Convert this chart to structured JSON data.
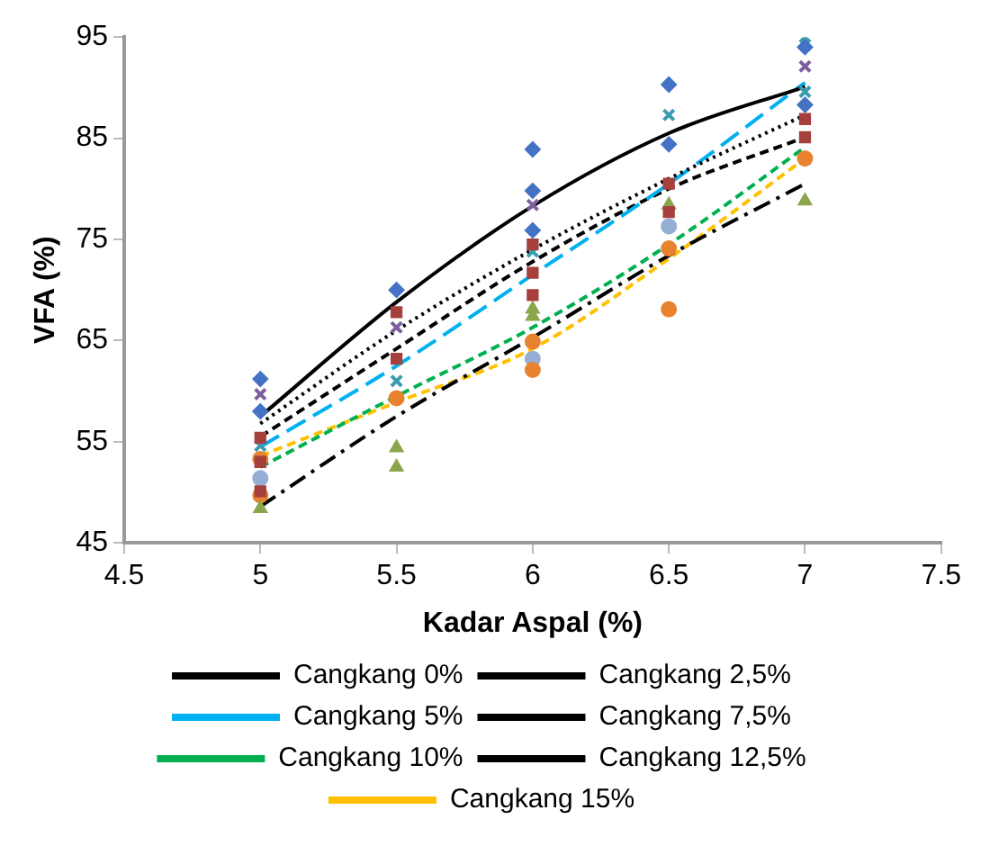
{
  "chart_data": {
    "type": "scatter",
    "xlabel": "Kadar Aspal (%)",
    "ylabel": "VFA (%)",
    "xlim": [
      4.5,
      7.5
    ],
    "xticks": [
      4.5,
      5,
      5.5,
      6,
      6.5,
      7,
      7.5
    ],
    "ylim": [
      45,
      95
    ],
    "yticks": [
      45,
      55,
      65,
      75,
      85,
      95
    ],
    "grid": false,
    "legend": "bottom",
    "series": [
      {
        "marker": "diamond",
        "color": "#4472c4",
        "x": [
          5,
          5,
          5.5,
          6,
          6,
          6,
          6.5,
          6.5,
          7,
          7
        ],
        "values": [
          61.2,
          58.0,
          70.0,
          83.9,
          79.8,
          75.9,
          90.3,
          84.4,
          94.0,
          88.3
        ]
      },
      {
        "marker": "square",
        "color": "#a5403c",
        "x": [
          5,
          5,
          5,
          5.5,
          5.5,
          6,
          6,
          6,
          6.5,
          6.5,
          7,
          7
        ],
        "values": [
          55.4,
          53.0,
          50.1,
          67.8,
          63.2,
          74.5,
          71.7,
          69.5,
          80.5,
          77.7,
          86.9,
          85.1
        ]
      },
      {
        "marker": "triangle",
        "color": "#8aa54c",
        "x": [
          5,
          5.5,
          5.5,
          6,
          6,
          6.5,
          7
        ],
        "values": [
          48.4,
          54.4,
          52.5,
          68.1,
          67.4,
          78.4,
          78.8
        ]
      },
      {
        "marker": "cross",
        "color": "#7e5f9e",
        "x": [
          5,
          5.5,
          6,
          7
        ],
        "values": [
          59.7,
          66.3,
          78.4,
          92.1
        ]
      },
      {
        "marker": "cross",
        "color": "#3d9bb0",
        "x": [
          5,
          5.5,
          6,
          6.5,
          7,
          7
        ],
        "values": [
          54.6,
          61.0,
          73.8,
          87.3,
          95.0,
          89.6
        ]
      },
      {
        "marker": "circle",
        "color": "#e8822f",
        "x": [
          5,
          5,
          5.5,
          6,
          6,
          6.5,
          6.5,
          7
        ],
        "values": [
          53.3,
          49.7,
          59.3,
          64.9,
          62.1,
          74.1,
          68.1,
          83.0
        ]
      },
      {
        "marker": "circle",
        "color": "#94aed4",
        "x": [
          5,
          6,
          6.5
        ],
        "values": [
          51.4,
          63.2,
          76.3
        ]
      },
      {
        "name": "Cangkang 0%",
        "type": "line",
        "line_style": "dotted",
        "marker": "none",
        "color": "#000000",
        "x": [
          5,
          5.5,
          6,
          6.5,
          7
        ],
        "values": [
          56.8,
          66.0,
          74.0,
          81.0,
          87.3
        ]
      },
      {
        "name": "Cangkang 2,5%",
        "type": "line",
        "line_style": "solid",
        "marker": "none",
        "color": "#000000",
        "x": [
          5,
          5.5,
          6,
          6.5,
          7
        ],
        "values": [
          57.5,
          68.8,
          78.3,
          85.5,
          90.1
        ]
      },
      {
        "name": "Cangkang 5%",
        "type": "line",
        "line_style": "long_dashed",
        "marker": "none",
        "color": "#00b0f0",
        "x": [
          5,
          5.5,
          6,
          6.5,
          7
        ],
        "values": [
          54.5,
          62.5,
          71.5,
          80.5,
          90.5
        ]
      },
      {
        "name": "Cangkang 7,5%",
        "type": "line",
        "line_style": "dashed",
        "marker": "none",
        "color": "#000000",
        "x": [
          5,
          5.5,
          6,
          6.5,
          7
        ],
        "values": [
          55.5,
          64.2,
          72.8,
          80.0,
          85.1
        ]
      },
      {
        "name": "Cangkang 10%",
        "type": "line",
        "line_style": "dashed",
        "marker": "none",
        "color": "#00b050",
        "x": [
          5,
          5.5,
          6,
          6.5,
          7
        ],
        "values": [
          52.5,
          59.5,
          66.3,
          74.5,
          84.1
        ]
      },
      {
        "name": "Cangkang 12,5%",
        "type": "line",
        "line_style": "dash_dot",
        "marker": "none",
        "color": "#000000",
        "x": [
          5,
          5.5,
          6,
          6.5,
          7
        ],
        "values": [
          48.6,
          57.5,
          65.3,
          73.4,
          80.5
        ]
      },
      {
        "name": "Cangkang 15%",
        "type": "line",
        "line_style": "dashed",
        "marker": "none",
        "color": "#ffc000",
        "x": [
          5,
          5.5,
          6,
          6.5,
          7
        ],
        "values": [
          53.6,
          58.9,
          64.2,
          73.1,
          83.0
        ]
      }
    ]
  }
}
